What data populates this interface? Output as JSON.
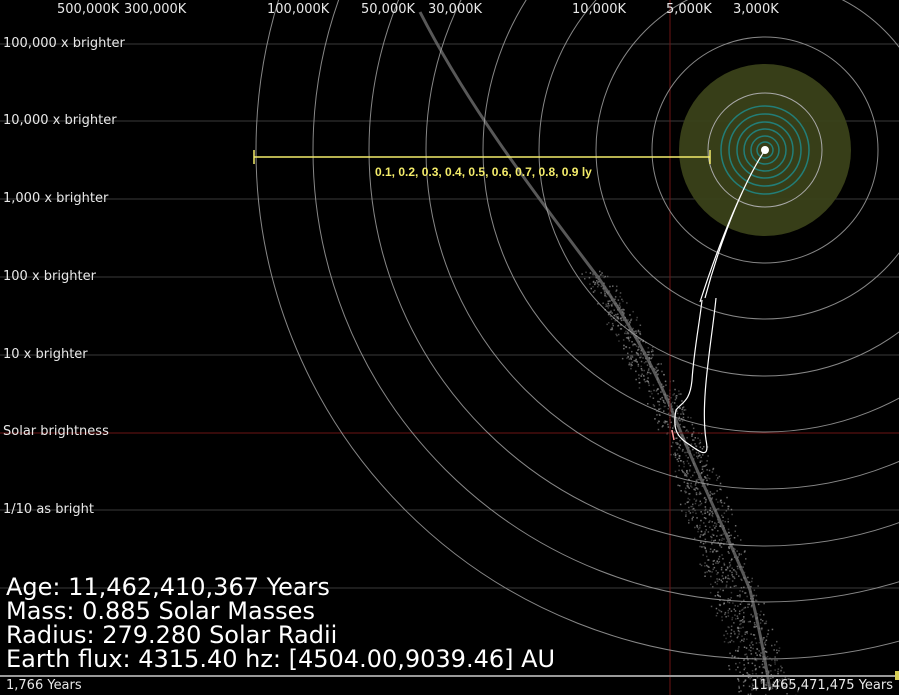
{
  "chart_data": {
    "type": "scatter",
    "title": "",
    "temperature_axis": {
      "position": "top",
      "ticks": [
        "500,000K",
        "300,000K",
        "100,000K",
        "50,000K",
        "30,000K",
        "10,000K",
        "5,000K",
        "3,000K"
      ]
    },
    "luminosity_axis": {
      "position": "left",
      "scale": "log",
      "ticks": [
        "100,000 x brighter",
        "10,000 x brighter",
        "1,000 x brighter",
        "100 x brighter",
        "10 x brighter",
        "Solar brightness",
        "1/10 as bright"
      ]
    },
    "grid": true,
    "reference_line_x": "5,800K",
    "reference_line_y": "Solar brightness",
    "background_scatter": "main sequence stars",
    "scale_bar_label": "0.1, 0.2, 0.3, 0.4, 0.5, 0.6, 0.7, 0.8, 0.9 ly",
    "colors": {
      "grid": "#3a3a3a",
      "reference": "#7a1a1a",
      "orbit_rings": "#a9a9a9",
      "habitable_zone": "#3a4119",
      "inner_rings": "#1f8a8a",
      "scale_bar": "#f4ec6a",
      "track": "#ffffff",
      "scatter": "#8c8c8c"
    }
  },
  "stats": {
    "age": "Age: 11,462,410,367 Years",
    "mass": "Mass: 0.885 Solar Masses",
    "radius": "Radius: 279.280 Solar Radii",
    "flux": "Earth flux: 4315.40 hz: [4504.00,9039.46] AU"
  },
  "timeline": {
    "start": "1,766 Years",
    "end": "11,465,471,475 Years",
    "progress": 0.9997
  }
}
